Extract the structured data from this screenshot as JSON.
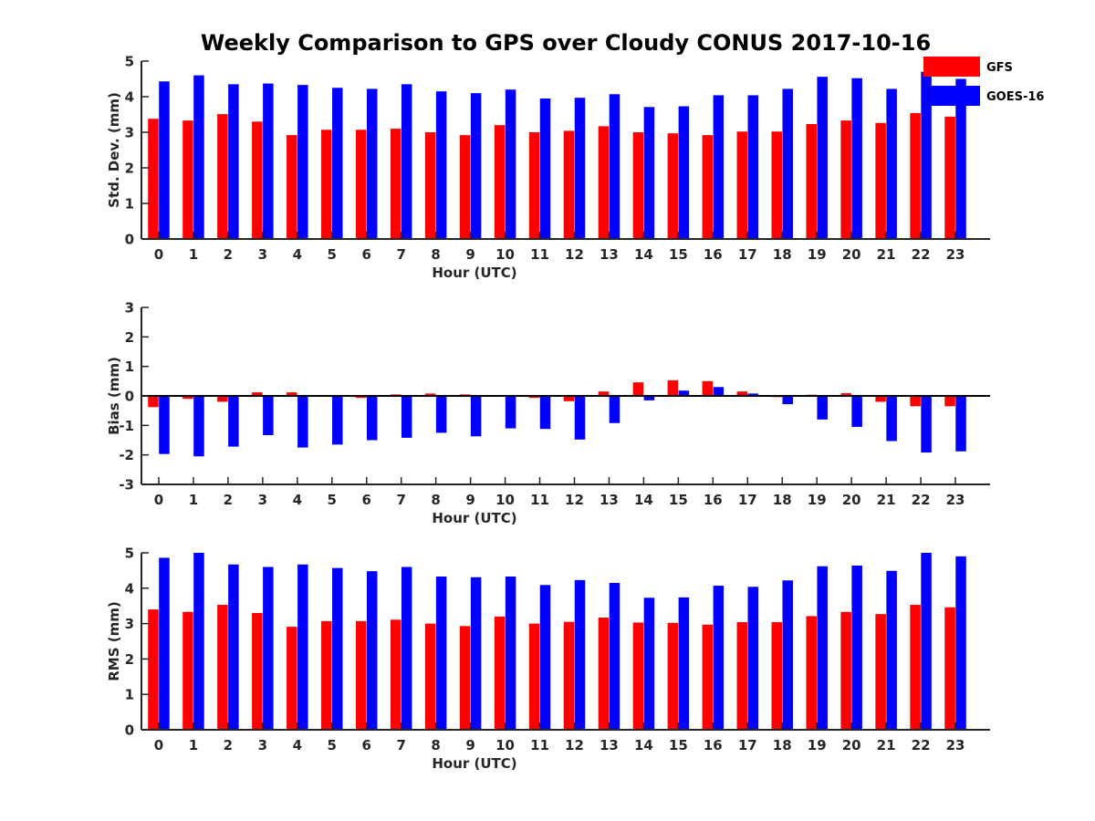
{
  "title": "Weekly Comparison to GPS over Cloudy CONUS 2017-10-16",
  "legend": [
    {
      "name": "GFS",
      "color": "#ff0000"
    },
    {
      "name": "GOES-16",
      "color": "#0000ff"
    }
  ],
  "chart_data": [
    {
      "type": "bar",
      "ylabel": "Std. Dev. (mm)",
      "xlabel": "Hour (UTC)",
      "ylim": [
        0,
        5
      ],
      "yticks": [
        0,
        1,
        2,
        3,
        4,
        5
      ],
      "categories": [
        0,
        1,
        2,
        3,
        4,
        5,
        6,
        7,
        8,
        9,
        10,
        11,
        12,
        13,
        14,
        15,
        16,
        17,
        18,
        19,
        20,
        21,
        22,
        23
      ],
      "series": [
        {
          "name": "GFS",
          "values": [
            3.38,
            3.33,
            3.51,
            3.3,
            2.92,
            3.07,
            3.07,
            3.1,
            3.0,
            2.92,
            3.2,
            3.0,
            3.04,
            3.17,
            3.0,
            2.97,
            2.92,
            3.02,
            3.02,
            3.23,
            3.33,
            3.26,
            3.54,
            3.44
          ]
        },
        {
          "name": "GOES-16",
          "values": [
            4.43,
            4.6,
            4.35,
            4.37,
            4.33,
            4.25,
            4.22,
            4.35,
            4.15,
            4.1,
            4.2,
            3.95,
            3.97,
            4.07,
            3.71,
            3.73,
            4.04,
            4.04,
            4.22,
            4.56,
            4.52,
            4.22,
            4.7,
            4.5
          ]
        }
      ]
    },
    {
      "type": "bar",
      "ylabel": "Bias (mm)",
      "xlabel": "Hour (UTC)",
      "ylim": [
        -3,
        3
      ],
      "yticks": [
        -3,
        -2,
        -1,
        0,
        1,
        2,
        3
      ],
      "categories": [
        0,
        1,
        2,
        3,
        4,
        5,
        6,
        7,
        8,
        9,
        10,
        11,
        12,
        13,
        14,
        15,
        16,
        17,
        18,
        19,
        20,
        21,
        22,
        23
      ],
      "series": [
        {
          "name": "GFS",
          "values": [
            -0.38,
            -0.1,
            -0.2,
            0.12,
            0.12,
            0.0,
            -0.07,
            0.05,
            0.08,
            0.05,
            -0.03,
            -0.07,
            -0.18,
            0.15,
            0.46,
            0.53,
            0.5,
            0.15,
            -0.04,
            0.04,
            0.09,
            -0.2,
            -0.35,
            -0.35
          ]
        },
        {
          "name": "GOES-16",
          "values": [
            -1.97,
            -2.05,
            -1.72,
            -1.33,
            -1.75,
            -1.65,
            -1.5,
            -1.42,
            -1.25,
            -1.37,
            -1.1,
            -1.12,
            -1.48,
            -0.92,
            -0.15,
            0.18,
            0.3,
            0.08,
            -0.28,
            -0.8,
            -1.05,
            -1.53,
            -1.92,
            -1.88
          ]
        }
      ]
    },
    {
      "type": "bar",
      "ylabel": "RMS (mm)",
      "xlabel": "Hour (UTC)",
      "ylim": [
        0,
        5
      ],
      "yticks": [
        0,
        1,
        2,
        3,
        4,
        5
      ],
      "categories": [
        0,
        1,
        2,
        3,
        4,
        5,
        6,
        7,
        8,
        9,
        10,
        11,
        12,
        13,
        14,
        15,
        16,
        17,
        18,
        19,
        20,
        21,
        22,
        23
      ],
      "series": [
        {
          "name": "GFS",
          "values": [
            3.4,
            3.33,
            3.53,
            3.3,
            2.91,
            3.07,
            3.07,
            3.11,
            3.0,
            2.93,
            3.2,
            3.0,
            3.05,
            3.17,
            3.03,
            3.02,
            2.97,
            3.04,
            3.04,
            3.21,
            3.33,
            3.27,
            3.53,
            3.46
          ]
        },
        {
          "name": "GOES-16",
          "values": [
            4.86,
            5.0,
            4.67,
            4.6,
            4.67,
            4.57,
            4.48,
            4.6,
            4.33,
            4.31,
            4.33,
            4.09,
            4.23,
            4.15,
            3.73,
            3.74,
            4.07,
            4.04,
            4.22,
            4.62,
            4.64,
            4.49,
            5.0,
            4.9
          ]
        }
      ]
    }
  ]
}
